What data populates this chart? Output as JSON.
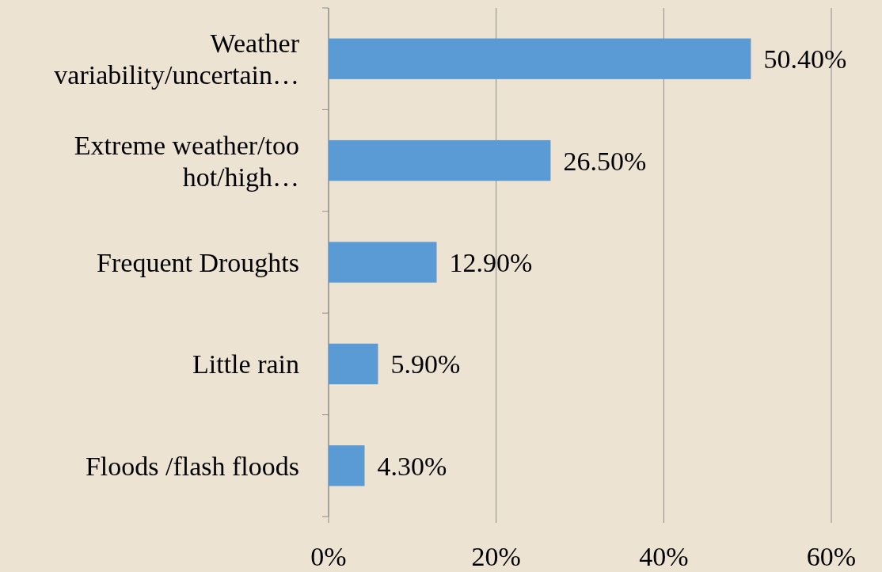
{
  "chart_data": {
    "type": "bar",
    "orientation": "horizontal",
    "categories": [
      "Weather variability/uncertain…",
      "Extreme weather/too hot/high…",
      "Frequent Droughts",
      "Little rain",
      "Floods /flash floods"
    ],
    "values": [
      50.4,
      26.5,
      12.9,
      5.9,
      4.3
    ],
    "value_labels": [
      "50.40%",
      "26.50%",
      "12.90%",
      "5.90%",
      "4.30%"
    ],
    "color": "#5b9bd5",
    "xlim": [
      0,
      60
    ],
    "xticks": [
      {
        "value": 0,
        "label": "0%"
      },
      {
        "value": 20,
        "label": "20%"
      },
      {
        "value": 40,
        "label": "40%"
      },
      {
        "value": 60,
        "label": "60%"
      }
    ],
    "grid": "x"
  }
}
